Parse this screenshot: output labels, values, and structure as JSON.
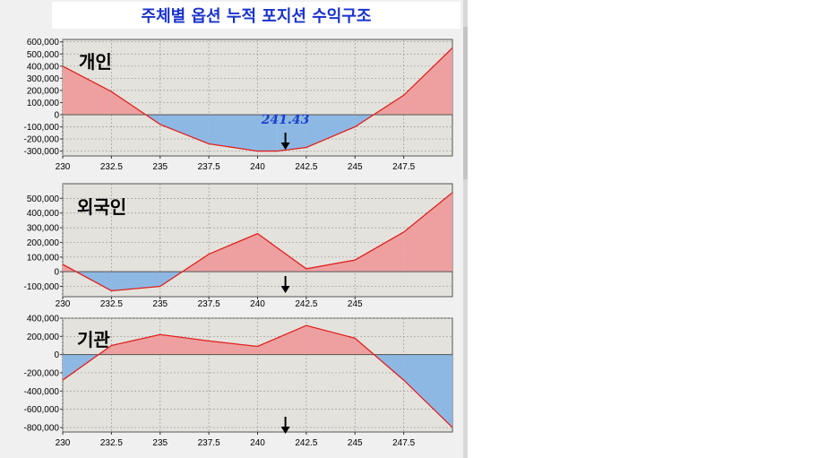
{
  "title": "주체별 옵션 누적 포지션 수익구조",
  "colors": {
    "title": "#1a33cc",
    "plot_bg": "#e4e2dc",
    "profit_fill": "#eea0a0",
    "loss_fill": "#8eb8e4",
    "line": "#e02020",
    "grid": "#9a9a9a",
    "figure_bg": "#f0f0f0",
    "price_label": "#1a3fcc"
  },
  "current_price_label": "241.43",
  "chart_data": [
    {
      "type": "area",
      "title": "개인",
      "x": [
        230,
        232.5,
        235,
        237.5,
        240,
        241,
        242.5,
        245,
        247.5,
        250
      ],
      "values": [
        400000,
        190000,
        -80000,
        -240000,
        -300000,
        -300000,
        -270000,
        -100000,
        160000,
        550000
      ],
      "xlim": [
        230,
        250
      ],
      "ylim": [
        -340000,
        620000
      ],
      "x_ticks": [
        "230",
        "232.5",
        "235",
        "237.5",
        "240",
        "242.5",
        "245",
        "247.5"
      ],
      "y_ticks": [
        "600,000",
        "500,000",
        "400,000",
        "300,000",
        "200,000",
        "100,000",
        "0",
        "-100,000",
        "-200,000",
        "-300,000"
      ],
      "marker_x": 241.43,
      "marker_label": "241.43"
    },
    {
      "type": "area",
      "title": "외국인",
      "x": [
        230,
        232.5,
        235,
        237.5,
        240,
        242.5,
        245,
        247.5,
        250
      ],
      "values": [
        50000,
        -130000,
        -100000,
        120000,
        260000,
        20000,
        80000,
        270000,
        540000
      ],
      "xlim": [
        230,
        250
      ],
      "ylim": [
        -170000,
        600000
      ],
      "x_ticks": [
        "230",
        "232.5",
        "235",
        "237.5",
        "240",
        "242.5",
        "245"
      ],
      "y_ticks": [
        "500,000",
        "400,000",
        "300,000",
        "200,000",
        "100,000",
        "0",
        "-100,000"
      ],
      "marker_x": 241.43
    },
    {
      "type": "area",
      "title": "기관",
      "x": [
        230,
        232.5,
        235,
        237.5,
        240,
        242.5,
        245,
        247.5,
        250
      ],
      "values": [
        -280000,
        100000,
        220000,
        150000,
        90000,
        320000,
        180000,
        -280000,
        -800000
      ],
      "xlim": [
        230,
        250
      ],
      "ylim": [
        -850000,
        400000
      ],
      "x_ticks": [
        "230",
        "232.5",
        "235",
        "237.5",
        "240",
        "242.5",
        "245",
        "247.5"
      ],
      "y_ticks": [
        "400,000",
        "200,000",
        "0",
        "-200,000",
        "-400,000",
        "-600,000",
        "-800,000"
      ],
      "marker_x": 241.43
    }
  ]
}
